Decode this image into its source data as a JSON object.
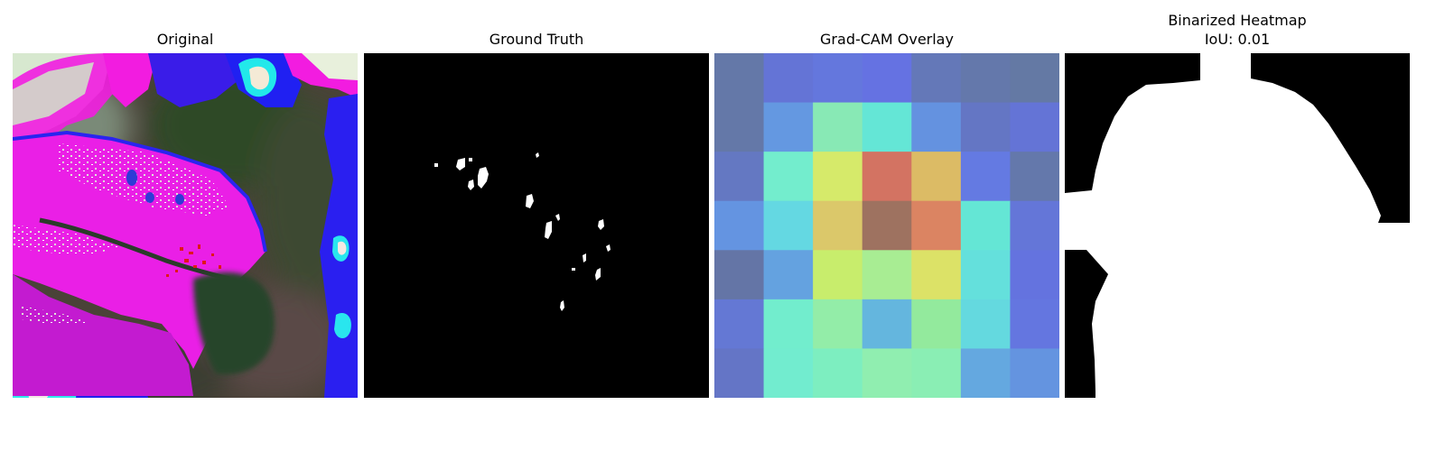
{
  "panels": {
    "original": {
      "title": "Original"
    },
    "ground_truth": {
      "title": "Ground Truth"
    },
    "gradcam": {
      "title": "Grad-CAM Overlay",
      "grid": [
        [
          "#6478a8",
          "#6474d6",
          "#6477dd",
          "#6572e2",
          "#6478b8",
          "#6478ab",
          "#6479a4"
        ],
        [
          "#6478a8",
          "#6498e1",
          "#88e9b5",
          "#64e6d6",
          "#6492e0",
          "#6476c4",
          "#6474d6"
        ],
        [
          "#6478c2",
          "#73edcd",
          "#d6ea6a",
          "#d37362",
          "#dcbb65",
          "#647ae2",
          "#6478ab"
        ],
        [
          "#6494e1",
          "#64d8e2",
          "#dbc86a",
          "#9e7260",
          "#db8462",
          "#64e6d5",
          "#6476d8"
        ],
        [
          "#6475a6",
          "#64a2e0",
          "#c8ed6c",
          "#a8ed93",
          "#dce267",
          "#64e0dc",
          "#6473df"
        ],
        [
          "#6478d4",
          "#72edcd",
          "#93eda8",
          "#64b6de",
          "#93ea9d",
          "#64d9df",
          "#6476e0"
        ],
        [
          "#6475c6",
          "#72eccf",
          "#7deec0",
          "#90eeb0",
          "#8aeeb4",
          "#64a8e0",
          "#6494e0"
        ]
      ]
    },
    "binarized": {
      "title_line1": "Binarized Heatmap",
      "title_line2": "IoU: 0.01"
    }
  }
}
